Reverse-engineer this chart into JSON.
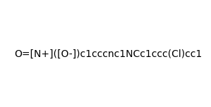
{
  "smiles": "O=[N+]([O-])c1cccnc1NCc1ccc(Cl)cc1",
  "figsize": [
    2.99,
    1.52
  ],
  "dpi": 100,
  "background": "#ffffff"
}
